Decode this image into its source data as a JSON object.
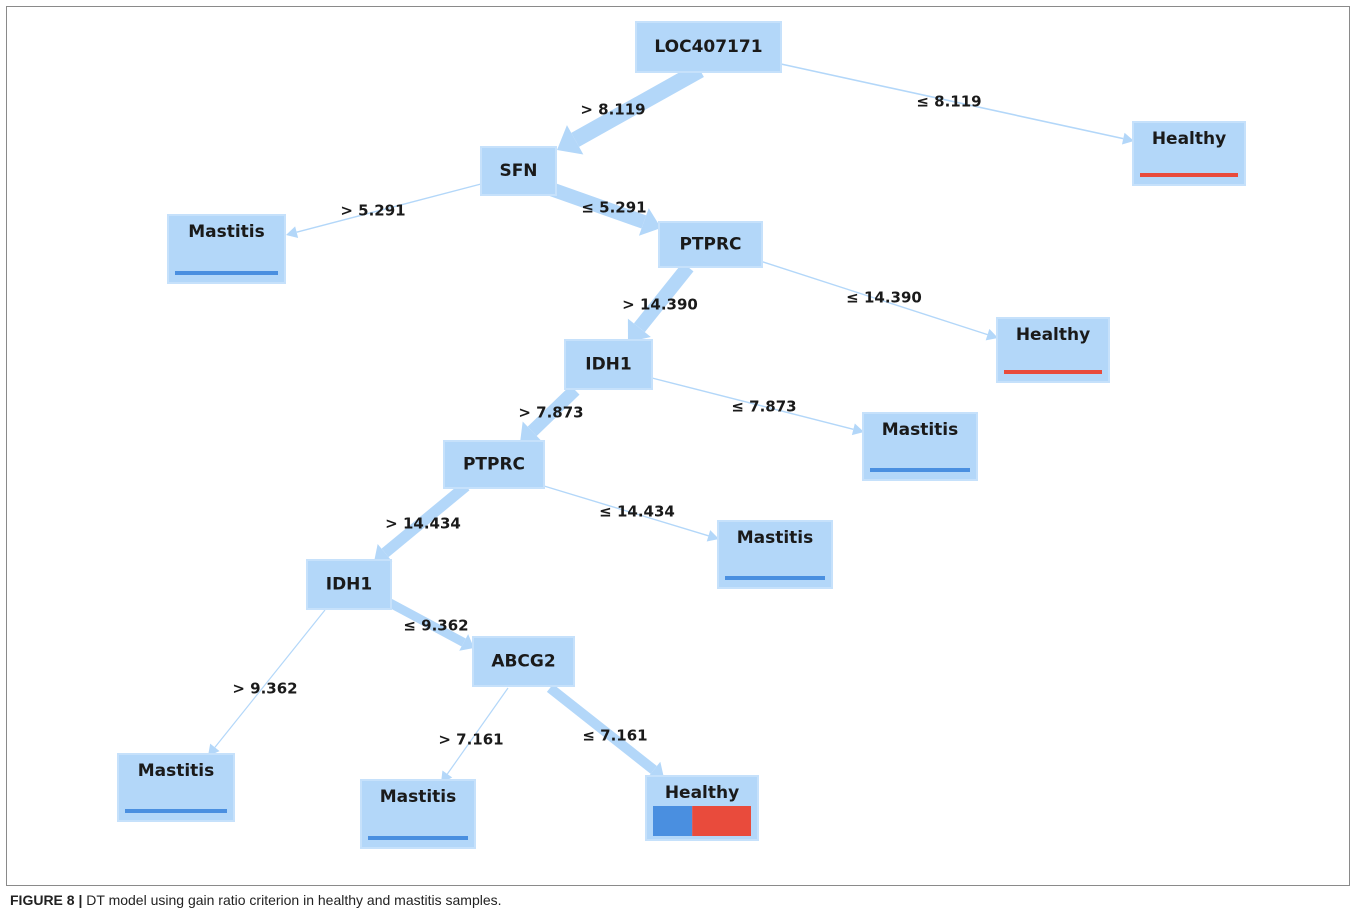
{
  "diagram": {
    "colors": {
      "node_fill": "#b3d7f9",
      "edge": "#b3d7f9",
      "mastitis_class": "#4a8fe0",
      "healthy_class": "#e94b3c"
    },
    "nodes": [
      {
        "id": "n1",
        "label": "LOC407171",
        "kind": "split"
      },
      {
        "id": "n2",
        "label": "SFN",
        "kind": "split"
      },
      {
        "id": "n3",
        "label": "Healthy",
        "kind": "leaf",
        "class_mix": [
          {
            "class": "healthy",
            "share": 1
          }
        ]
      },
      {
        "id": "n4",
        "label": "Mastitis",
        "kind": "leaf",
        "class_mix": [
          {
            "class": "mastitis",
            "share": 1
          }
        ]
      },
      {
        "id": "n5",
        "label": "PTPRC",
        "kind": "split"
      },
      {
        "id": "n6",
        "label": "IDH1",
        "kind": "split"
      },
      {
        "id": "n7",
        "label": "Healthy",
        "kind": "leaf",
        "class_mix": [
          {
            "class": "healthy",
            "share": 1
          }
        ]
      },
      {
        "id": "n8",
        "label": "PTPRC",
        "kind": "split"
      },
      {
        "id": "n9",
        "label": "Mastitis",
        "kind": "leaf",
        "class_mix": [
          {
            "class": "mastitis",
            "share": 1
          }
        ]
      },
      {
        "id": "n10",
        "label": "IDH1",
        "kind": "split"
      },
      {
        "id": "n11",
        "label": "Mastitis",
        "kind": "leaf",
        "class_mix": [
          {
            "class": "mastitis",
            "share": 1
          }
        ]
      },
      {
        "id": "n12",
        "label": "ABCG2",
        "kind": "split"
      },
      {
        "id": "n13",
        "label": "Mastitis",
        "kind": "leaf",
        "class_mix": [
          {
            "class": "mastitis",
            "share": 1
          }
        ]
      },
      {
        "id": "n14",
        "label": "Mastitis",
        "kind": "leaf",
        "class_mix": [
          {
            "class": "mastitis",
            "share": 1
          }
        ]
      },
      {
        "id": "n15",
        "label": "Healthy",
        "kind": "leaf",
        "class_mix": [
          {
            "class": "mastitis",
            "share": 0.4
          },
          {
            "class": "healthy",
            "share": 0.6
          }
        ]
      }
    ],
    "edges": [
      {
        "from": "n1",
        "to": "n2",
        "label": "> 8.119"
      },
      {
        "from": "n1",
        "to": "n3",
        "label": "≤ 8.119"
      },
      {
        "from": "n2",
        "to": "n4",
        "label": "> 5.291"
      },
      {
        "from": "n2",
        "to": "n5",
        "label": "≤ 5.291"
      },
      {
        "from": "n5",
        "to": "n6",
        "label": "> 14.390"
      },
      {
        "from": "n5",
        "to": "n7",
        "label": "≤ 14.390"
      },
      {
        "from": "n6",
        "to": "n8",
        "label": "> 7.873"
      },
      {
        "from": "n6",
        "to": "n9",
        "label": "≤ 7.873"
      },
      {
        "from": "n8",
        "to": "n10",
        "label": "> 14.434"
      },
      {
        "from": "n8",
        "to": "n11",
        "label": "≤ 14.434"
      },
      {
        "from": "n10",
        "to": "n13",
        "label": "> 9.362"
      },
      {
        "from": "n10",
        "to": "n12",
        "label": "≤ 9.362"
      },
      {
        "from": "n12",
        "to": "n14",
        "label": "> 7.161"
      },
      {
        "from": "n12",
        "to": "n15",
        "label": "≤ 7.161"
      }
    ]
  },
  "caption": {
    "figure_label": "FIGURE 8 |",
    "text": " DT model using gain ratio criterion in healthy and mastitis samples."
  }
}
